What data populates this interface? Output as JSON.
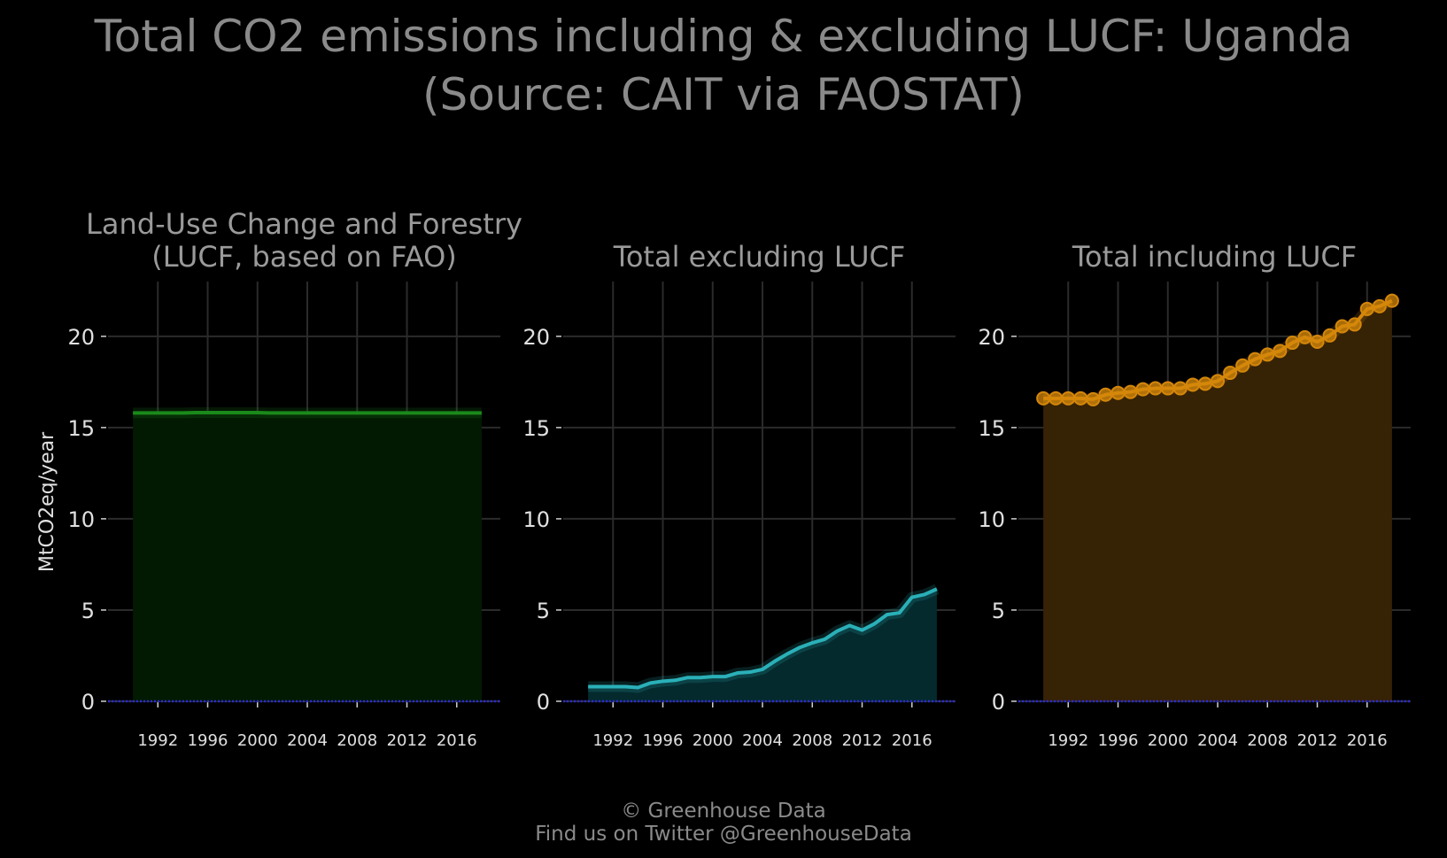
{
  "title_line1": "Total CO2 emissions including & excluding LUCF: Uganda",
  "title_line2": "(Source: CAIT via FAOSTAT)",
  "footer_line1": "© Greenhouse Data",
  "footer_line2": "Find us on Twitter @GreenhouseData",
  "chart_data": [
    {
      "type": "area",
      "title_lines": [
        "Land-Use Change and Forestry",
        "(LUCF, based on FAO)"
      ],
      "ylabel": "MtCO2eq/year",
      "color": "#1a8a1a",
      "fill": "#021a02",
      "markers": false,
      "x": [
        1990,
        1991,
        1992,
        1993,
        1994,
        1995,
        1996,
        1997,
        1998,
        1999,
        2000,
        2001,
        2002,
        2003,
        2004,
        2005,
        2006,
        2007,
        2008,
        2009,
        2010,
        2011,
        2012,
        2013,
        2014,
        2015,
        2016,
        2017,
        2018
      ],
      "y": [
        15.8,
        15.8,
        15.8,
        15.8,
        15.8,
        15.82,
        15.82,
        15.82,
        15.82,
        15.82,
        15.82,
        15.8,
        15.8,
        15.8,
        15.8,
        15.8,
        15.8,
        15.8,
        15.8,
        15.8,
        15.8,
        15.8,
        15.8,
        15.8,
        15.8,
        15.8,
        15.8,
        15.8,
        15.8
      ],
      "xticks": [
        "1992",
        "1996",
        "2000",
        "2004",
        "2008",
        "2012",
        "2016"
      ],
      "yticks": [
        "0",
        "5",
        "10",
        "15",
        "20"
      ],
      "xlim": [
        1988,
        2019.5
      ],
      "ylim": [
        0,
        23
      ]
    },
    {
      "type": "area",
      "title_lines": [
        "Total excluding LUCF"
      ],
      "ylabel": "",
      "color": "#2ab0b8",
      "fill": "#042a2e",
      "markers": false,
      "x": [
        1990,
        1991,
        1992,
        1993,
        1994,
        1995,
        1996,
        1997,
        1998,
        1999,
        2000,
        2001,
        2002,
        2003,
        2004,
        2005,
        2006,
        2007,
        2008,
        2009,
        2010,
        2011,
        2012,
        2013,
        2014,
        2015,
        2016,
        2017,
        2018
      ],
      "y": [
        0.8,
        0.8,
        0.8,
        0.8,
        0.75,
        1.0,
        1.1,
        1.15,
        1.3,
        1.3,
        1.35,
        1.35,
        1.55,
        1.6,
        1.75,
        2.2,
        2.6,
        2.95,
        3.2,
        3.4,
        3.85,
        4.15,
        3.9,
        4.25,
        4.75,
        4.85,
        5.7,
        5.85,
        6.15
      ],
      "xticks": [
        "1992",
        "1996",
        "2000",
        "2004",
        "2008",
        "2012",
        "2016"
      ],
      "yticks": [
        "0",
        "5",
        "10",
        "15",
        "20"
      ],
      "xlim": [
        1988,
        2019.5
      ],
      "ylim": [
        0,
        23
      ]
    },
    {
      "type": "area",
      "title_lines": [
        "Total including LUCF"
      ],
      "ylabel": "",
      "color": "#d4870a",
      "fill": "#362204",
      "markers": true,
      "x": [
        1990,
        1991,
        1992,
        1993,
        1994,
        1995,
        1996,
        1997,
        1998,
        1999,
        2000,
        2001,
        2002,
        2003,
        2004,
        2005,
        2006,
        2007,
        2008,
        2009,
        2010,
        2011,
        2012,
        2013,
        2014,
        2015,
        2016,
        2017,
        2018
      ],
      "y": [
        16.6,
        16.6,
        16.6,
        16.6,
        16.55,
        16.8,
        16.9,
        16.95,
        17.1,
        17.15,
        17.15,
        17.15,
        17.35,
        17.4,
        17.55,
        18.0,
        18.4,
        18.75,
        19.0,
        19.2,
        19.65,
        19.95,
        19.7,
        20.05,
        20.55,
        20.65,
        21.5,
        21.65,
        21.95
      ],
      "xticks": [
        "1992",
        "1996",
        "2000",
        "2004",
        "2008",
        "2012",
        "2016"
      ],
      "yticks": [
        "0",
        "5",
        "10",
        "15",
        "20"
      ],
      "xlim": [
        1988,
        2019.5
      ],
      "ylim": [
        0,
        23
      ]
    }
  ]
}
